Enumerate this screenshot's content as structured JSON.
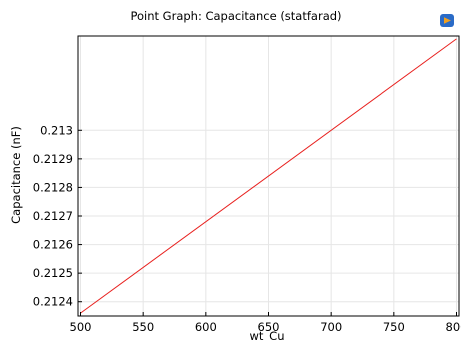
{
  "chart_data": {
    "type": "line",
    "title": "Point Graph: Capacitance (statfarad)",
    "xlabel": "wt_Cu",
    "ylabel": "Capacitance (nF)",
    "xlim": [
      498,
      802
    ],
    "ylim": [
      0.21235,
      0.21333
    ],
    "x_ticks": [
      500,
      550,
      600,
      650,
      700,
      750,
      800
    ],
    "x_tick_labels": [
      "500",
      "550",
      "600",
      "650",
      "700",
      "750",
      "800"
    ],
    "y_ticks": [
      0.2124,
      0.2125,
      0.2126,
      0.2127,
      0.2128,
      0.2129,
      0.213
    ],
    "y_tick_labels": [
      "0.2124",
      "0.2125",
      "0.2126",
      "0.2127",
      "0.2128",
      "0.2129",
      "0.213"
    ],
    "grid": true,
    "series": [
      {
        "color": "#e8201e",
        "x": [
          500,
          800
        ],
        "y": [
          0.21236,
          0.21332
        ]
      }
    ]
  },
  "toolbar": {
    "icon": "comsol-icon"
  },
  "colors": {
    "grid": "#e6e6e6",
    "axis": "#000000",
    "line": "#e8201e",
    "icon_blue": "#2a6bc7",
    "icon_orange": "#f0a020"
  }
}
